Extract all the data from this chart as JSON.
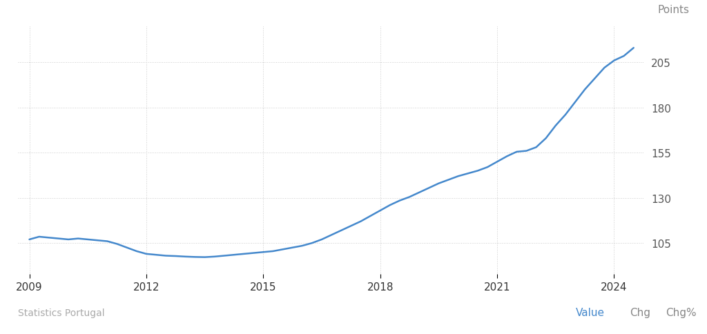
{
  "ylabel": "Points",
  "source_text": "Statistics Portugal",
  "legend_items": [
    "Value",
    "Chg",
    "Chg%"
  ],
  "legend_colors": [
    "#4488cc",
    "#888888",
    "#888888"
  ],
  "background_color": "#ffffff",
  "line_color": "#4488cc",
  "line_width": 1.8,
  "yticks": [
    105,
    130,
    155,
    180,
    205
  ],
  "ylim": [
    88,
    225
  ],
  "xlim_start": 2008.7,
  "xlim_end": 2024.75,
  "xticks": [
    2009,
    2012,
    2015,
    2018,
    2021,
    2024
  ],
  "x": [
    2009.0,
    2009.25,
    2009.5,
    2009.75,
    2010.0,
    2010.25,
    2010.5,
    2010.75,
    2011.0,
    2011.25,
    2011.5,
    2011.75,
    2012.0,
    2012.25,
    2012.5,
    2012.75,
    2013.0,
    2013.25,
    2013.5,
    2013.75,
    2014.0,
    2014.25,
    2014.5,
    2014.75,
    2015.0,
    2015.25,
    2015.5,
    2015.75,
    2016.0,
    2016.25,
    2016.5,
    2016.75,
    2017.0,
    2017.25,
    2017.5,
    2017.75,
    2018.0,
    2018.25,
    2018.5,
    2018.75,
    2019.0,
    2019.25,
    2019.5,
    2019.75,
    2020.0,
    2020.25,
    2020.5,
    2020.75,
    2021.0,
    2021.25,
    2021.5,
    2021.75,
    2022.0,
    2022.25,
    2022.5,
    2022.75,
    2023.0,
    2023.25,
    2023.5,
    2023.75,
    2024.0,
    2024.25,
    2024.5
  ],
  "y": [
    107.0,
    108.5,
    108.0,
    107.5,
    107.0,
    107.5,
    107.0,
    106.5,
    106.0,
    104.5,
    102.5,
    100.5,
    99.0,
    98.5,
    98.0,
    97.8,
    97.5,
    97.3,
    97.2,
    97.5,
    98.0,
    98.5,
    99.0,
    99.5,
    100.0,
    100.5,
    101.5,
    102.5,
    103.5,
    105.0,
    107.0,
    109.5,
    112.0,
    114.5,
    117.0,
    120.0,
    123.0,
    126.0,
    128.5,
    130.5,
    133.0,
    135.5,
    138.0,
    140.0,
    142.0,
    143.5,
    145.0,
    147.0,
    150.0,
    153.0,
    155.5,
    156.0,
    158.0,
    163.0,
    170.0,
    176.0,
    183.0,
    190.0,
    196.0,
    202.0,
    206.0,
    208.5,
    213.0
  ]
}
